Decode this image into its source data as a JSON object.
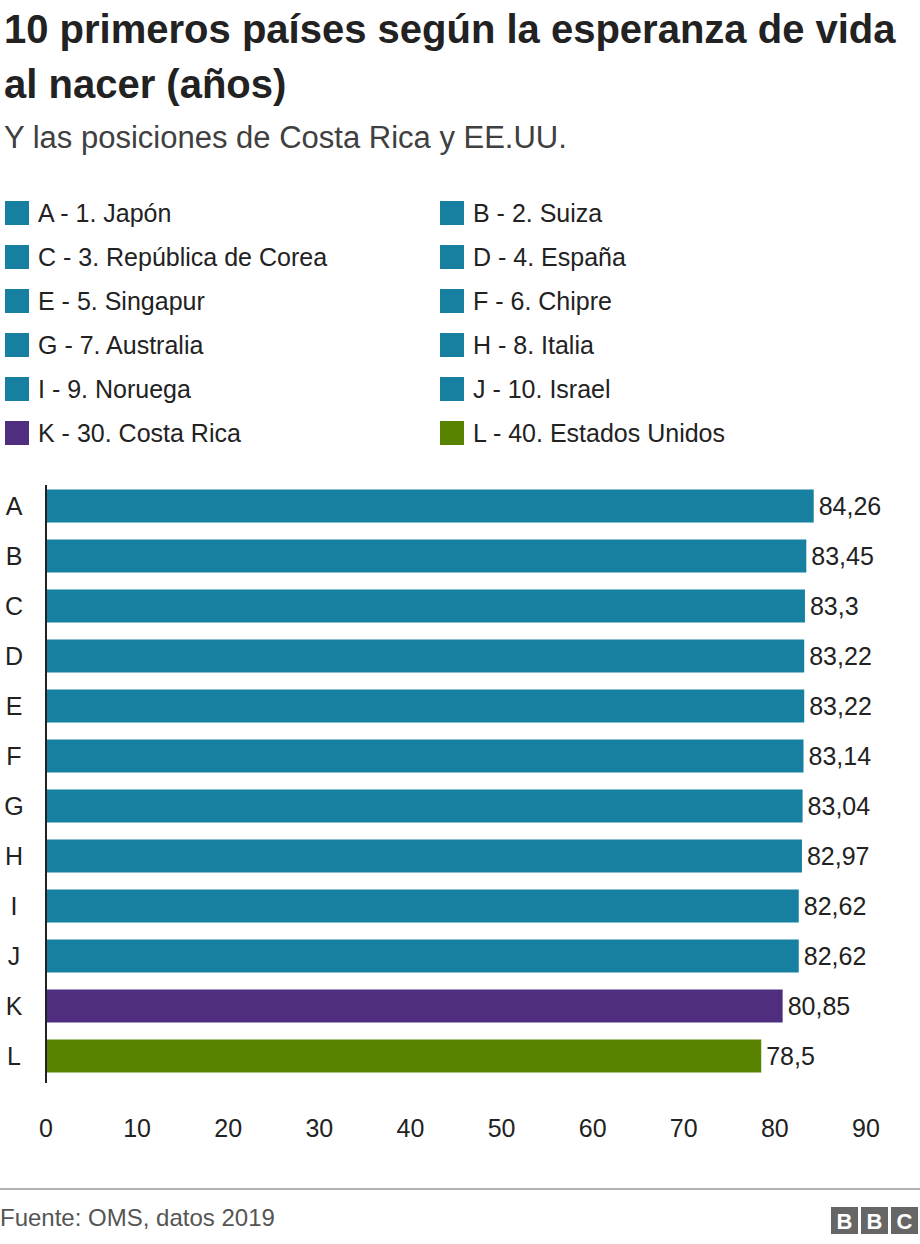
{
  "chart_data": {
    "type": "bar",
    "orientation": "horizontal",
    "title": "10 primeros países según la esperanza de vida al nacer (años)",
    "subtitle": "Y las posiciones de Costa Rica y EE.UU.",
    "legend_entries": [
      "A - 1. Japón",
      "B - 2. Suiza",
      "C - 3. República de Corea",
      "D - 4. España",
      "E - 5. Singapur",
      "F - 6. Chipre",
      "G - 7. Australia",
      "H - 8. Italia",
      "I - 9. Noruega",
      "J - 10. Israel",
      "K - 30. Costa Rica",
      "L - 40. Estados Unidos"
    ],
    "categories": [
      "A",
      "B",
      "C",
      "D",
      "E",
      "F",
      "G",
      "H",
      "I",
      "J",
      "K",
      "L"
    ],
    "values": [
      84.26,
      83.45,
      83.3,
      83.22,
      83.22,
      83.14,
      83.04,
      82.97,
      82.62,
      82.62,
      80.85,
      78.5
    ],
    "value_labels": [
      "84,26",
      "83,45",
      "83,3",
      "83,22",
      "83,22",
      "83,14",
      "83,04",
      "82,97",
      "82,62",
      "82,62",
      "80,85",
      "78,5"
    ],
    "colors": [
      "#1780a1",
      "#1780a1",
      "#1780a1",
      "#1780a1",
      "#1780a1",
      "#1780a1",
      "#1780a1",
      "#1780a1",
      "#1780a1",
      "#1780a1",
      "#4f2d7f",
      "#588300"
    ],
    "xlim": [
      0,
      90
    ],
    "xticks": [
      0,
      10,
      20,
      30,
      40,
      50,
      60,
      70,
      80,
      90
    ],
    "data_labels": true,
    "grid": false,
    "source": "Fuente: OMS, datos 2019",
    "logo": "BBC"
  }
}
